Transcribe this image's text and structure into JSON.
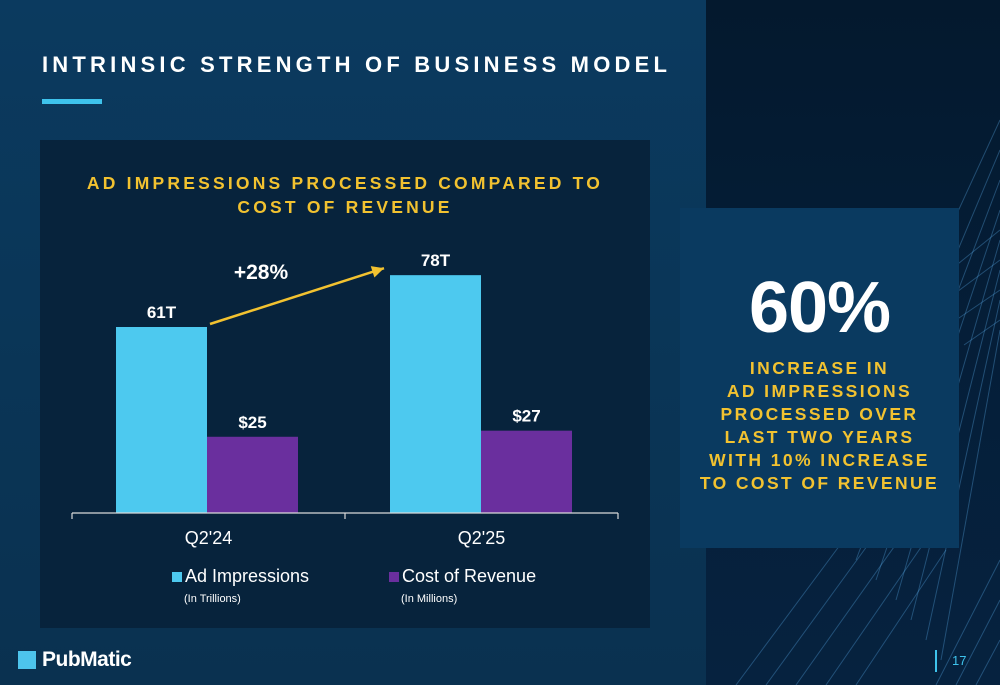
{
  "header": {
    "title": "INTRINSIC STRENGTH OF BUSINESS MODEL"
  },
  "chart_data": {
    "type": "bar",
    "title_lines": [
      "AD IMPRESSIONS PROCESSED COMPARED TO",
      "COST OF REVENUE"
    ],
    "categories": [
      "Q2'24",
      "Q2'25"
    ],
    "series": [
      {
        "name": "Ad Impressions",
        "unit_note": "(In Trillions)",
        "color": "#4dc9ef",
        "values": [
          61,
          78
        ],
        "labels": [
          "61T",
          "78T"
        ]
      },
      {
        "name": "Cost of Revenue",
        "unit_note": "(In Millions)",
        "color": "#6a2f9e",
        "values": [
          25,
          27
        ],
        "labels": [
          "$25",
          "$27"
        ]
      }
    ],
    "annotation": {
      "text": "+28%",
      "color": "#f2c230",
      "from_category": "Q2'24",
      "to_category": "Q2'25",
      "series": "Ad Impressions"
    },
    "grid": false,
    "legend": "bottom"
  },
  "kpi": {
    "value": "60%",
    "description_lines": [
      "INCREASE IN",
      "AD IMPRESSIONS",
      "PROCESSED OVER",
      "LAST TWO YEARS",
      "WITH 10% INCREASE",
      "TO COST OF REVENUE"
    ]
  },
  "footer": {
    "logo_text": "PubMatic",
    "page_number": "17"
  },
  "colors": {
    "accent_blue": "#3ec3ec",
    "accent_yellow": "#f2c230",
    "background": "#0b3a5f"
  }
}
